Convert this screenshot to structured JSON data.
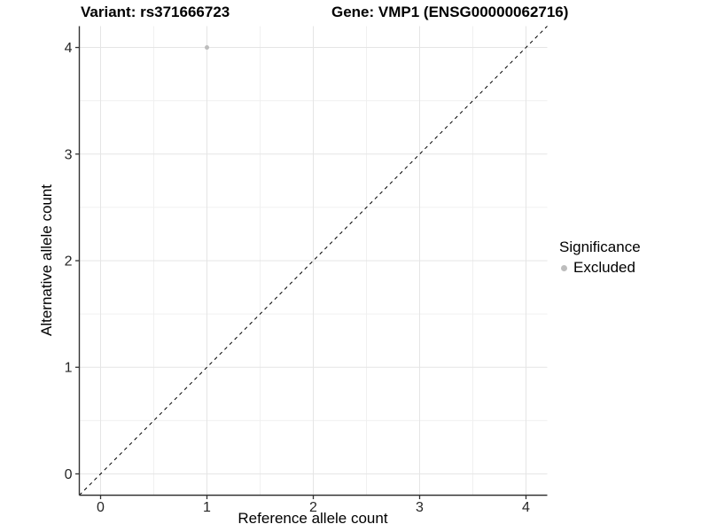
{
  "chart_data": {
    "type": "scatter",
    "title_left": "Variant: rs371666723",
    "title_right": "Gene: VMP1 (ENSG00000062716)",
    "xlabel": "Reference allele count",
    "ylabel": "Alternative allele count",
    "xlim": [
      -0.2,
      4.2
    ],
    "ylim": [
      -0.2,
      4.2
    ],
    "x_ticks": [
      0,
      1,
      2,
      3,
      4
    ],
    "y_ticks": [
      0,
      1,
      2,
      3,
      4
    ],
    "x_tick_labels": [
      "0",
      "1",
      "2",
      "3",
      "4"
    ],
    "y_tick_labels": [
      "0",
      "1",
      "2",
      "3",
      "4"
    ],
    "x_minor_ticks": [
      0.5,
      1.5,
      2.5,
      3.5
    ],
    "y_minor_ticks": [
      0.5,
      1.5,
      2.5,
      3.5
    ],
    "grid": "major+minor",
    "series": [
      {
        "name": "Excluded",
        "color": "#bdbdbd",
        "marker": "circle",
        "points": [
          {
            "x": 1,
            "y": 4
          }
        ]
      }
    ],
    "reference_line": {
      "kind": "identity",
      "from": [
        -0.2,
        -0.2
      ],
      "to": [
        4.2,
        4.2
      ],
      "style": "dashed",
      "color": "#000000"
    },
    "legend": {
      "title": "Significance",
      "position": "right",
      "items": [
        {
          "label": "Excluded",
          "color": "#bdbdbd",
          "marker": "circle"
        }
      ]
    }
  },
  "style": {
    "background": "#ffffff",
    "grid_major": "#e5e5e5",
    "grid_minor": "#f0f0f0",
    "axis_line": "#333333",
    "tick_color": "#333333",
    "tick_label_color": "#262626",
    "text_color": "#000000"
  }
}
